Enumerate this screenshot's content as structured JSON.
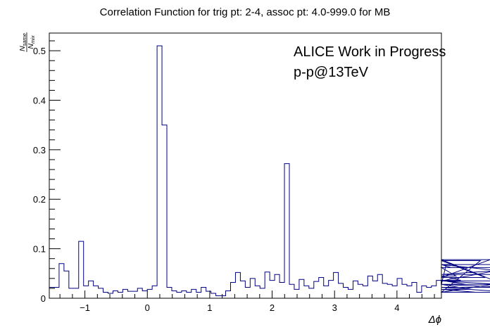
{
  "chart_data": {
    "type": "line",
    "title": "Correlation Function for trig pt: 2-4, assoc pt: 4.0-999.0 for MB",
    "xlabel": "Δϕ",
    "ylabel": {
      "main": "N",
      "num_sub": "same",
      "den_sub": "mix"
    },
    "annotations": [
      "ALICE Work in Progress",
      "p-p@13TeV"
    ],
    "xlim": [
      -1.5708,
      4.7124
    ],
    "ylim": [
      0,
      0.5357
    ],
    "x_ticks": [
      {
        "v": -1,
        "label": "−1"
      },
      {
        "v": 0,
        "label": "0"
      },
      {
        "v": 1,
        "label": "1"
      },
      {
        "v": 2,
        "label": "2"
      },
      {
        "v": 3,
        "label": "3"
      },
      {
        "v": 4,
        "label": "4"
      }
    ],
    "y_ticks": [
      {
        "v": 0,
        "label": "0"
      },
      {
        "v": 0.1,
        "label": "0.1"
      },
      {
        "v": 0.2,
        "label": "0.2"
      },
      {
        "v": 0.3,
        "label": "0.3"
      },
      {
        "v": 0.4,
        "label": "0.4"
      },
      {
        "v": 0.5,
        "label": "0.5"
      }
    ],
    "series": [
      {
        "color": "#000080",
        "style": "histogram-step",
        "bin_width": 0.0785,
        "values": [
          0.022,
          0.022,
          0.07,
          0.055,
          0.02,
          0.02,
          0.115,
          0.025,
          0.035,
          0.025,
          0.02,
          0.012,
          0.01,
          0.015,
          0.012,
          0.018,
          0.014,
          0.014,
          0.02,
          0.015,
          0.018,
          0.025,
          0.51,
          0.35,
          0.022,
          0.015,
          0.012,
          0.015,
          0.012,
          0.018,
          0.012,
          0.022,
          0.014,
          0.01,
          0.005,
          0.005,
          0.015,
          0.032,
          0.052,
          0.035,
          0.022,
          0.04,
          0.025,
          0.02,
          0.053,
          0.036,
          0.048,
          0.032,
          0.272,
          0.028,
          0.018,
          0.038,
          0.025,
          0.02,
          0.034,
          0.042,
          0.025,
          0.036,
          0.052,
          0.03,
          0.022,
          0.018,
          0.035,
          0.028,
          0.025,
          0.045,
          0.035,
          0.048,
          0.03,
          0.028,
          0.025,
          0.04,
          0.028,
          0.025,
          0.032,
          0.012,
          0.025,
          0.022,
          0.025,
          0.036,
          0.028,
          0.068,
          0.062,
          0.045,
          0.036,
          0.028,
          0.018,
          0.012,
          0.076,
          0.042,
          0.078,
          0.035,
          0.028,
          0.022,
          0.012,
          0.035,
          0.035,
          0.035,
          0.068,
          0.048,
          0.062
        ]
      }
    ]
  }
}
